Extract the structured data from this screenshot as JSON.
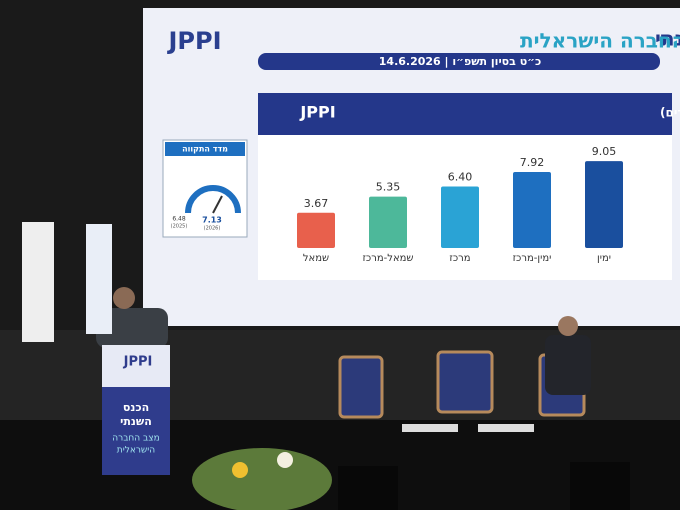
{
  "screen": {
    "logo": "JPPI",
    "title": "הכנס השנתי",
    "subtitle": "מצב החברה הישראלית",
    "date": "14.6.2026 | כ״ט בסיון תשפ״ו"
  },
  "gauge": {
    "title": "מדד התקווה",
    "values": [
      6.48,
      7.13
    ],
    "years": [
      "(2025)",
      "(2026)"
    ]
  },
  "chart_data": {
    "type": "bar",
    "logo": "JPPI",
    "title": "מדד התקווה - לפי קבוצות אידאולוגיות (יהודים)",
    "categories": [
      "שמאל",
      "שמאל-מרכז",
      "מרכז",
      "ימין-מרכז",
      "ימין"
    ],
    "values": [
      3.67,
      5.35,
      6.4,
      7.92,
      9.05
    ],
    "value_labels": [
      "3.67",
      "5.35",
      "6.40",
      "7.92",
      "9.05"
    ],
    "colors": [
      "#e8604c",
      "#4db89a",
      "#2aa3d5",
      "#1e6fc0",
      "#1a4f9e"
    ]
  },
  "podium": {
    "logo": "JPPI",
    "lines": [
      "הכנס",
      "השנתי",
      "מצב החברה",
      "הישראלית"
    ]
  }
}
